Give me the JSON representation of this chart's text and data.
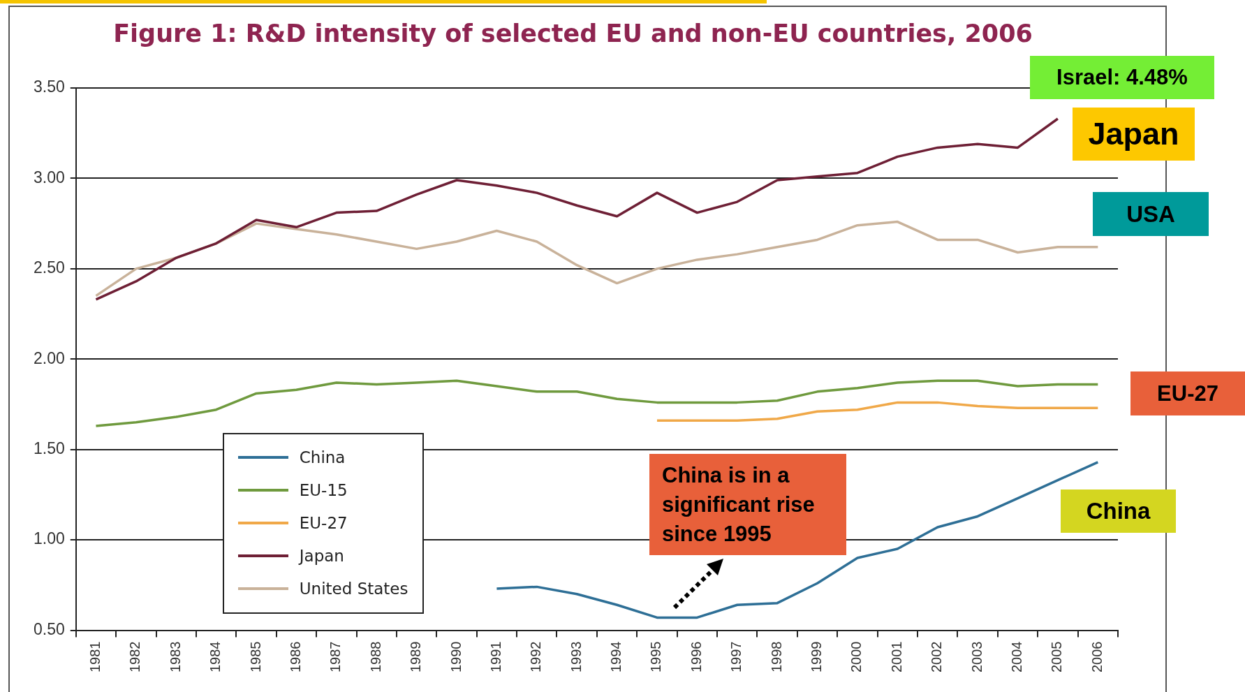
{
  "chart_data": {
    "type": "line",
    "title": "Figure 1: R&D intensity of selected EU and non-EU countries, 2006",
    "categories": [
      "1981",
      "1982",
      "1983",
      "1984",
      "1985",
      "1986",
      "1987",
      "1988",
      "1989",
      "1990",
      "1991",
      "1992",
      "1993",
      "1994",
      "1995",
      "1996",
      "1997",
      "1998",
      "1999",
      "2000",
      "2001",
      "2002",
      "2003",
      "2004",
      "2005",
      "2006"
    ],
    "series": [
      {
        "name": "China",
        "color": "#2e6f96",
        "values": [
          null,
          null,
          null,
          null,
          null,
          null,
          null,
          null,
          null,
          null,
          0.73,
          0.74,
          0.7,
          0.64,
          0.57,
          0.57,
          0.64,
          0.65,
          0.76,
          0.9,
          0.95,
          1.07,
          1.13,
          1.23,
          1.33,
          1.43
        ]
      },
      {
        "name": "EU-15",
        "color": "#6f9a3e",
        "values": [
          1.63,
          1.65,
          1.68,
          1.72,
          1.81,
          1.83,
          1.87,
          1.86,
          1.87,
          1.88,
          1.85,
          1.82,
          1.82,
          1.78,
          1.76,
          1.76,
          1.76,
          1.77,
          1.82,
          1.84,
          1.87,
          1.88,
          1.88,
          1.85,
          1.86,
          1.86
        ]
      },
      {
        "name": "EU-27",
        "color": "#f0a848",
        "values": [
          null,
          null,
          null,
          null,
          null,
          null,
          null,
          null,
          null,
          null,
          null,
          null,
          null,
          null,
          1.66,
          1.66,
          1.66,
          1.67,
          1.71,
          1.72,
          1.76,
          1.76,
          1.74,
          1.73,
          1.73,
          1.73
        ]
      },
      {
        "name": "Japan",
        "color": "#6e1f35",
        "values": [
          2.33,
          2.43,
          2.56,
          2.64,
          2.77,
          2.73,
          2.81,
          2.82,
          2.91,
          2.99,
          2.96,
          2.92,
          2.85,
          2.79,
          2.92,
          2.81,
          2.87,
          2.99,
          3.01,
          3.03,
          3.12,
          3.17,
          3.19,
          3.17,
          3.33,
          null
        ]
      },
      {
        "name": "United States",
        "color": "#c9b29a",
        "values": [
          2.35,
          2.5,
          2.56,
          2.64,
          2.75,
          2.72,
          2.69,
          2.65,
          2.61,
          2.65,
          2.71,
          2.65,
          2.52,
          2.42,
          2.5,
          2.55,
          2.58,
          2.62,
          2.66,
          2.74,
          2.76,
          2.66,
          2.66,
          2.59,
          2.62,
          2.62
        ]
      }
    ],
    "ylim": [
      0.5,
      3.5
    ],
    "yticks": [
      {
        "value": 0.5,
        "label": "0.50"
      },
      {
        "value": 1,
        "label": "1.00"
      },
      {
        "value": 1.5,
        "label": "1.50"
      },
      {
        "value": 2,
        "label": "2.00"
      },
      {
        "value": 2.5,
        "label": "2.50"
      },
      {
        "value": 3,
        "label": "3.00"
      },
      {
        "value": 3.5,
        "label": "3.50"
      }
    ],
    "grid": "y",
    "legend": "bottom left",
    "marker": "none",
    "line_style": "solid",
    "annotations": [
      "Israel: 4.48%",
      "Japan",
      "USA",
      "EU-27",
      "China",
      "China is in a significant rise since 1995"
    ]
  }
}
